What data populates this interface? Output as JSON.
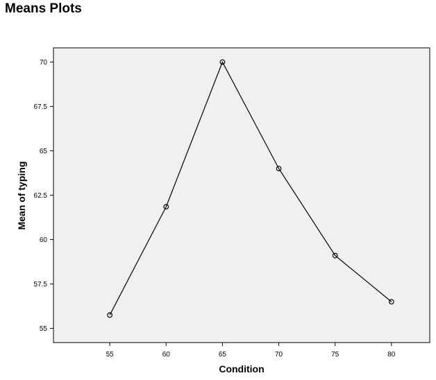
{
  "page": {
    "title": "Means Plots"
  },
  "chart_data": {
    "type": "line",
    "title": "",
    "xlabel": "Condition",
    "ylabel": "Mean of typing",
    "x": [
      55,
      60,
      65,
      70,
      75,
      80
    ],
    "series": [
      {
        "values": [
          55.75,
          61.85,
          70.0,
          64.0,
          59.1,
          56.5
        ]
      }
    ],
    "x_ticks": [
      55,
      60,
      65,
      70,
      75,
      80
    ],
    "y_ticks": [
      55,
      57.5,
      60,
      62.5,
      65,
      67.5,
      70
    ],
    "x_tick_labels": [
      "55",
      "60",
      "65",
      "70",
      "75",
      "80"
    ],
    "y_tick_labels": [
      "55",
      "57.5",
      "60",
      "62.5",
      "65",
      "67.5",
      "70"
    ],
    "xlim": [
      50,
      83.4
    ],
    "ylim": [
      54.2,
      70.8
    ],
    "grid": false,
    "legend": "none",
    "colors": {
      "plot_background": "#f0f0f0",
      "line": "#000000",
      "marker": "#000000",
      "frame": "#000000"
    },
    "marker": "open-circle"
  }
}
